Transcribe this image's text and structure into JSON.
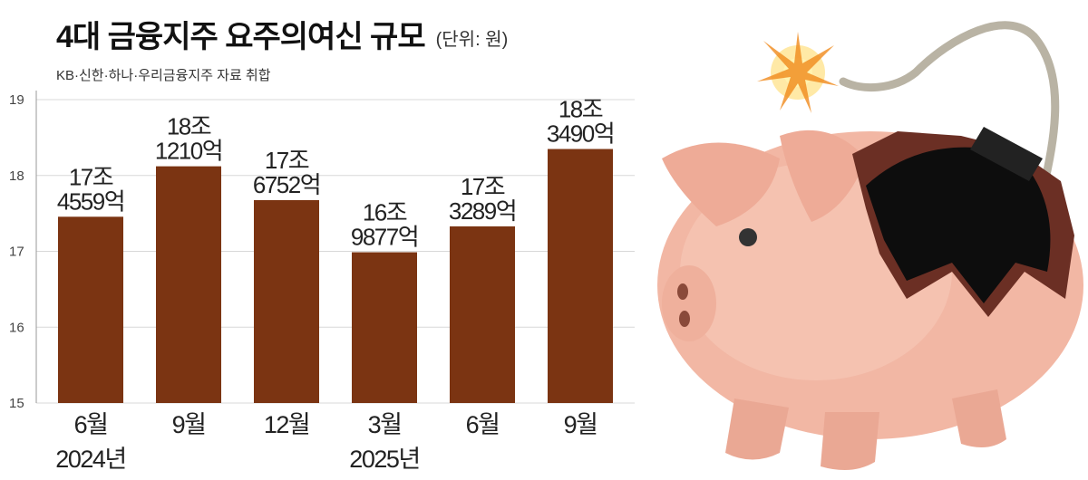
{
  "chart_data": {
    "type": "bar",
    "title": "4대 금융지주 요주의여신 규모",
    "unit": "(단위: 원)",
    "subtitle": "KB·신한·하나·우리금융지주 자료 취합",
    "categories": [
      "6월 2024년",
      "9월",
      "12월",
      "3월 2025년",
      "6월",
      "9월"
    ],
    "values": [
      17.4559,
      18.121,
      17.6752,
      16.9877,
      17.3289,
      18.349
    ],
    "value_labels": [
      "17조 4559억",
      "18조 1210억",
      "17조 6752억",
      "16조 9877억",
      "17조 3289억",
      "18조 3490억"
    ],
    "color": "#7b3412",
    "ylim": [
      15,
      19
    ],
    "yticks": [
      15,
      16,
      17,
      18,
      19
    ],
    "grid": true
  }
}
